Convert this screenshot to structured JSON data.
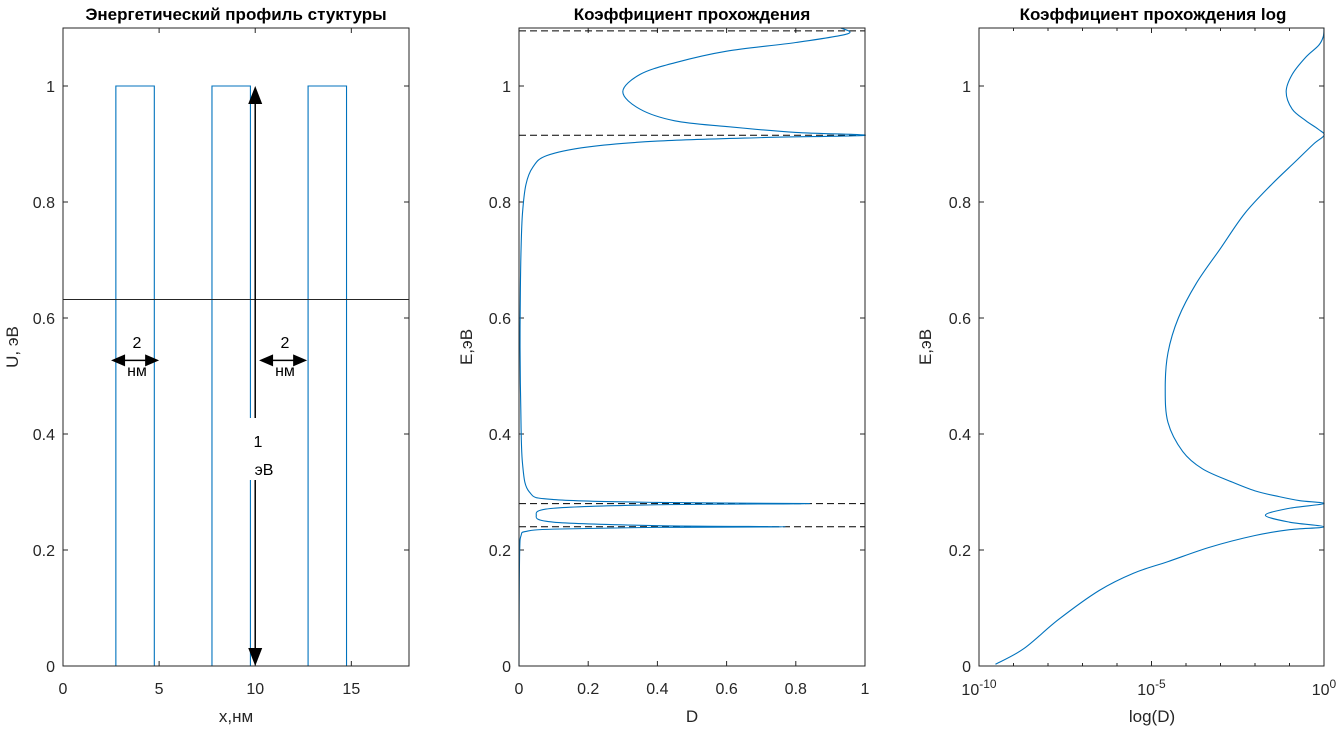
{
  "colors": {
    "series": "#0072BD",
    "axes": "#262626",
    "annotation": "#000000"
  },
  "chart_data": [
    {
      "type": "line",
      "title": "Энергетический профиль стуктуры",
      "xlabel": "x,нм",
      "ylabel": "U, эВ",
      "xlim": [
        0,
        18
      ],
      "ylim": [
        0,
        1.1
      ],
      "xticks": [
        0,
        5,
        10,
        15
      ],
      "xtick_labels": [
        "0",
        "5",
        "10",
        "15"
      ],
      "yticks": [
        0,
        0.2,
        0.4,
        0.6,
        0.8,
        1
      ],
      "ytick_labels": [
        "0",
        "0.2",
        "0.4",
        "0.6",
        "0.8",
        "1"
      ],
      "grid": false,
      "series": [
        {
          "x": [
            0,
            2.75,
            2.75,
            4.75,
            4.75,
            7.75,
            7.75,
            9.75,
            9.75,
            12.75,
            12.75,
            14.75,
            14.75,
            18
          ],
          "y": [
            0,
            0,
            1,
            1,
            0,
            0,
            1,
            1,
            0,
            0,
            1,
            1,
            0,
            0
          ]
        }
      ],
      "hlines": [
        {
          "y": 0.632,
          "style": "solid"
        }
      ],
      "annotations": {
        "width_label_num": "2",
        "width_label_unit": "нм",
        "height_label_num": "1",
        "height_label_unit": "эВ",
        "width_arrows": [
          {
            "x1": 2.5,
            "x2": 5.0,
            "y": 0.527
          },
          {
            "x1": 10.2,
            "x2": 12.7,
            "y": 0.527
          }
        ],
        "height_arrow": {
          "x": 10.0,
          "y1": 0,
          "y2": 1
        }
      }
    },
    {
      "type": "line",
      "title": "Коэффициент прохождения",
      "xlabel": "D",
      "ylabel": "E,эВ",
      "xlim": [
        0,
        1
      ],
      "ylim": [
        0,
        1.1
      ],
      "xticks": [
        0,
        0.2,
        0.4,
        0.6,
        0.8,
        1
      ],
      "xtick_labels": [
        "0",
        "0.2",
        "0.4",
        "0.6",
        "0.8",
        "1"
      ],
      "yticks": [
        0,
        0.2,
        0.4,
        0.6,
        0.8,
        1
      ],
      "ytick_labels": [
        "0",
        "0.2",
        "0.4",
        "0.6",
        "0.8",
        "1"
      ],
      "grid": false,
      "resonances": [
        0.24,
        0.28,
        0.915,
        1.095
      ],
      "series": [
        {
          "x": [
            0,
            0.0005,
            0.002,
            0.006,
            0.02,
            0.1,
            0.4,
            0.77,
            0.4,
            0.1,
            0.05,
            0.1,
            0.4,
            0.84,
            0.4,
            0.1,
            0.03,
            0.01,
            0.005,
            0.003,
            0.004,
            0.006,
            0.01,
            0.02,
            0.04,
            0.08,
            0.2,
            0.4,
            0.7,
            1.0,
            0.8,
            0.6,
            0.45,
            0.35,
            0.3,
            0.35,
            0.45,
            0.6,
            0.8,
            0.95,
            0.93
          ],
          "y": [
            0,
            0.1,
            0.2,
            0.225,
            0.232,
            0.236,
            0.239,
            0.24,
            0.242,
            0.248,
            0.26,
            0.272,
            0.278,
            0.28,
            0.282,
            0.287,
            0.3,
            0.35,
            0.45,
            0.55,
            0.65,
            0.72,
            0.78,
            0.83,
            0.86,
            0.88,
            0.895,
            0.905,
            0.911,
            0.915,
            0.92,
            0.93,
            0.94,
            0.96,
            0.99,
            1.02,
            1.04,
            1.06,
            1.075,
            1.09,
            1.1
          ]
        }
      ]
    },
    {
      "type": "line",
      "title": "Коэффициент прохождения log",
      "xlabel": "log(D)",
      "ylabel": "E,эВ",
      "xscale": "log",
      "xlim": [
        1e-10,
        1
      ],
      "ylim": [
        0,
        1.1
      ],
      "xticks": [
        1e-10,
        1e-05,
        1
      ],
      "xtick_base": [
        "10",
        "10",
        "10"
      ],
      "xtick_exp": [
        "-10",
        "-5",
        "0"
      ],
      "yticks": [
        0,
        0.2,
        0.4,
        0.6,
        0.8,
        1
      ],
      "ytick_labels": [
        "0",
        "0.2",
        "0.4",
        "0.6",
        "0.8",
        "1"
      ],
      "grid": false,
      "series": [
        {
          "x": [
            3e-10,
            2e-09,
            2e-08,
            3e-07,
            3e-06,
            3e-05,
            0.0005,
            0.01,
            0.1,
            1.0,
            0.1,
            0.02,
            0.1,
            1.0,
            0.2,
            0.05,
            0.01,
            0.002,
            0.0003,
            8e-05,
            3e-05,
            2.5e-05,
            3e-05,
            6e-05,
            0.0002,
            0.001,
            0.005,
            0.03,
            0.15,
            0.5,
            1.0,
            0.7,
            0.3,
            0.12,
            0.08,
            0.12,
            0.3,
            0.7,
            0.95,
            1.0
          ],
          "y": [
            0.003,
            0.03,
            0.08,
            0.13,
            0.16,
            0.18,
            0.205,
            0.225,
            0.235,
            0.24,
            0.248,
            0.26,
            0.272,
            0.28,
            0.285,
            0.292,
            0.302,
            0.318,
            0.34,
            0.37,
            0.42,
            0.48,
            0.54,
            0.6,
            0.66,
            0.72,
            0.78,
            0.83,
            0.87,
            0.9,
            0.915,
            0.925,
            0.94,
            0.96,
            0.99,
            1.02,
            1.05,
            1.07,
            1.085,
            1.1
          ]
        }
      ]
    }
  ]
}
